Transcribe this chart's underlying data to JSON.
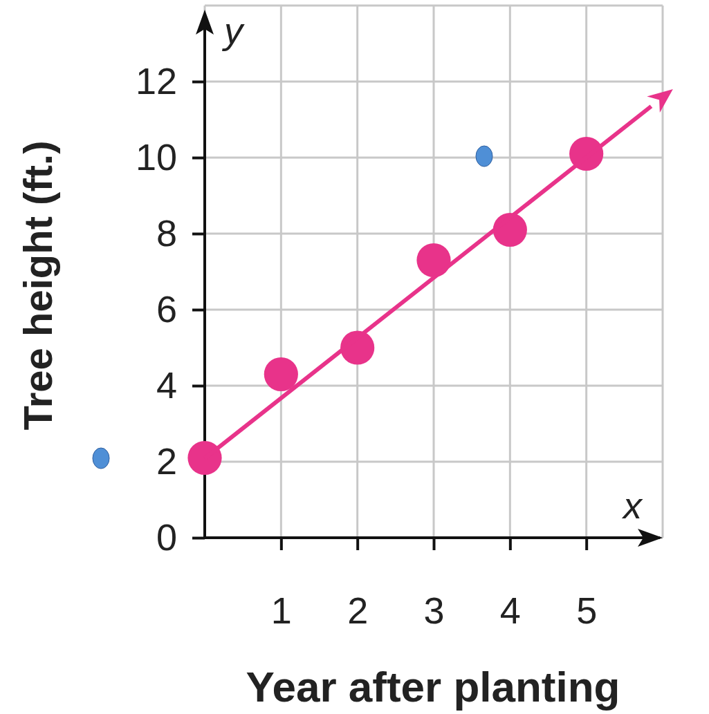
{
  "chart_data": {
    "type": "scatter",
    "xlabel": "Year after planting",
    "ylabel": "Tree height (ft.)",
    "annotations": [
      "x",
      "y"
    ],
    "x": [
      0,
      1,
      2,
      3,
      4,
      5
    ],
    "series": [
      {
        "color": "#e8338a",
        "values": [
          2.1,
          4.3,
          5.0,
          7.3,
          8.1,
          10.1
        ]
      },
      {
        "type": "line",
        "color": "#e8338a",
        "marker": "none",
        "x": [
          0,
          5.85
        ],
        "values": [
          2.09,
          11.35
        ]
      }
    ],
    "xlim": [
      0,
      6
    ],
    "ylim": [
      0,
      14
    ],
    "xticks": [
      1,
      2,
      3,
      4,
      5
    ],
    "yticks": [
      0,
      2,
      4,
      6,
      8,
      10,
      12
    ],
    "grid": true,
    "marker": "circle"
  }
}
